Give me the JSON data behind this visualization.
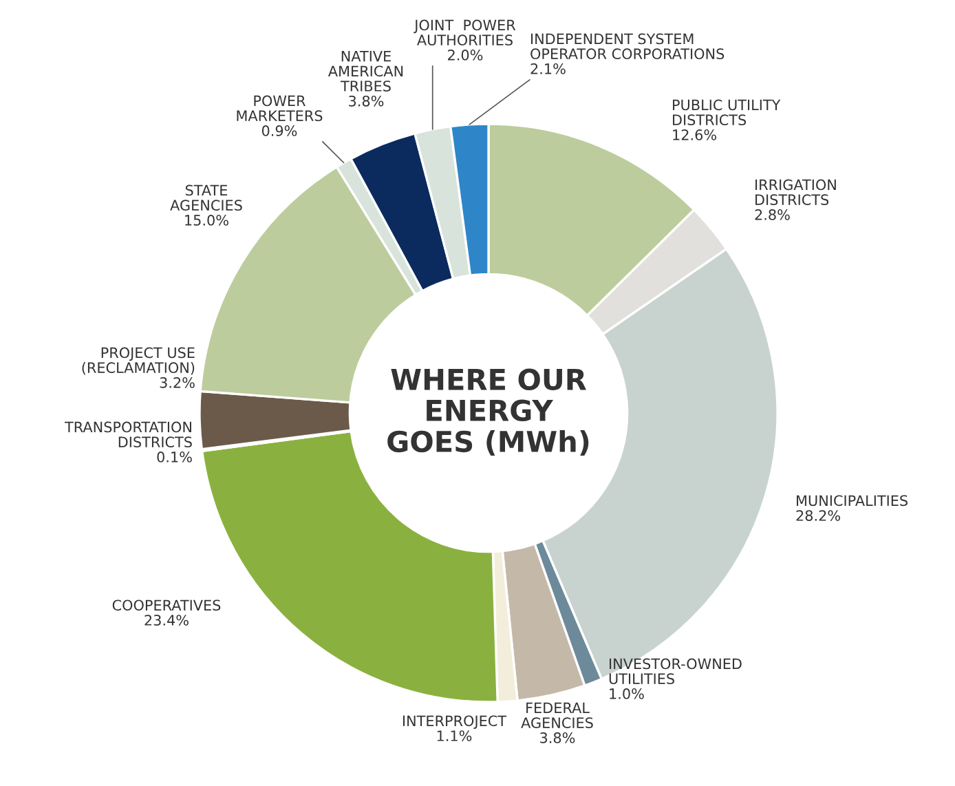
{
  "chart_data": {
    "type": "donut",
    "title": "WHERE OUR\nENERGY\nGOES (MWh)",
    "categories": [
      "PUBLIC UTILITY\nDISTRICTS",
      "IRRIGATION\nDISTRICTS",
      "MUNICIPALITIES",
      "INVESTOR-OWNED\nUTILITIES",
      "FEDERAL\nAGENCIES",
      "INTERPROJECT",
      "COOPERATIVES",
      "TRANSPORTATION\nDISTRICTS",
      "PROJECT USE\n(RECLAMATION)",
      "STATE\nAGENCIES",
      "POWER\nMARKETERS",
      "NATIVE\nAMERICAN\nTRIBES",
      "JOINT  POWER\nAUTHORITIES",
      "INDEPENDENT SYSTEM\nOPERATOR CORPORATIONS"
    ],
    "values": [
      12.6,
      2.8,
      28.2,
      1.0,
      3.8,
      1.1,
      23.4,
      0.1,
      3.2,
      15.0,
      0.9,
      3.8,
      2.0,
      2.1
    ],
    "value_labels": [
      "12.6%",
      "2.8%",
      "28.2%",
      "1.0%",
      "3.8%",
      "1.1%",
      "23.4%",
      "0.1%",
      "3.2%",
      "15.0%",
      "0.9%",
      "3.8%",
      "2.0%",
      "2.1%"
    ],
    "colors": [
      "#bdcc9c",
      "#e2e0dc",
      "#c8d3cf",
      "#6d8a9b",
      "#c4b9a9",
      "#f3eedb",
      "#8ab13f",
      "#c4b09a",
      "#6b5a4a",
      "#bdcc9c",
      "#d8e3dc",
      "#0b2b5f",
      "#d8e3dc",
      "#2e86c8"
    ],
    "legend": false
  }
}
